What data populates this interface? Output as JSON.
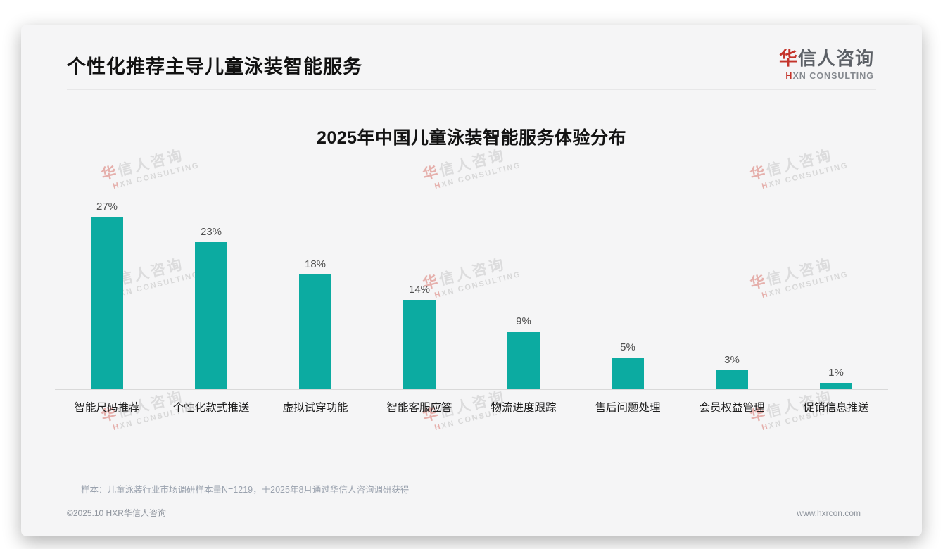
{
  "header": {
    "title": "个性化推荐主导儿童泳装智能服务"
  },
  "logo": {
    "cn_first": "华",
    "cn_rest": "信人咨询",
    "en_first": "H",
    "en_rest": "XN CONSULTING",
    "red": "#c4342b"
  },
  "watermark": {
    "cn_first": "华",
    "cn_rest": "信人咨询",
    "en_first": "H",
    "en_rest": "XN CONSULTING"
  },
  "chart_data": {
    "type": "bar",
    "title": "2025年中国儿童泳装智能服务体验分布",
    "categories": [
      "智能尺码推荐",
      "个性化款式推送",
      "虚拟试穿功能",
      "智能客服应答",
      "物流进度跟踪",
      "售后问题处理",
      "会员权益管理",
      "促销信息推送"
    ],
    "values": [
      27,
      23,
      18,
      14,
      9,
      5,
      3,
      1
    ],
    "value_labels": [
      "27%",
      "23%",
      "18%",
      "14%",
      "9%",
      "5%",
      "3%",
      "1%"
    ],
    "unit": "%",
    "bar_color": "#0caba1",
    "ylim": [
      0,
      30
    ],
    "grid": false,
    "legend": "none",
    "xlabel": "",
    "ylabel": ""
  },
  "footnote": {
    "text": "样本：儿童泳装行业市场调研样本量N=1219，于2025年8月通过华信人咨询调研获得"
  },
  "footer": {
    "left": "©2025.10 HXR华信人咨询",
    "right": "www.hxrcon.com"
  }
}
